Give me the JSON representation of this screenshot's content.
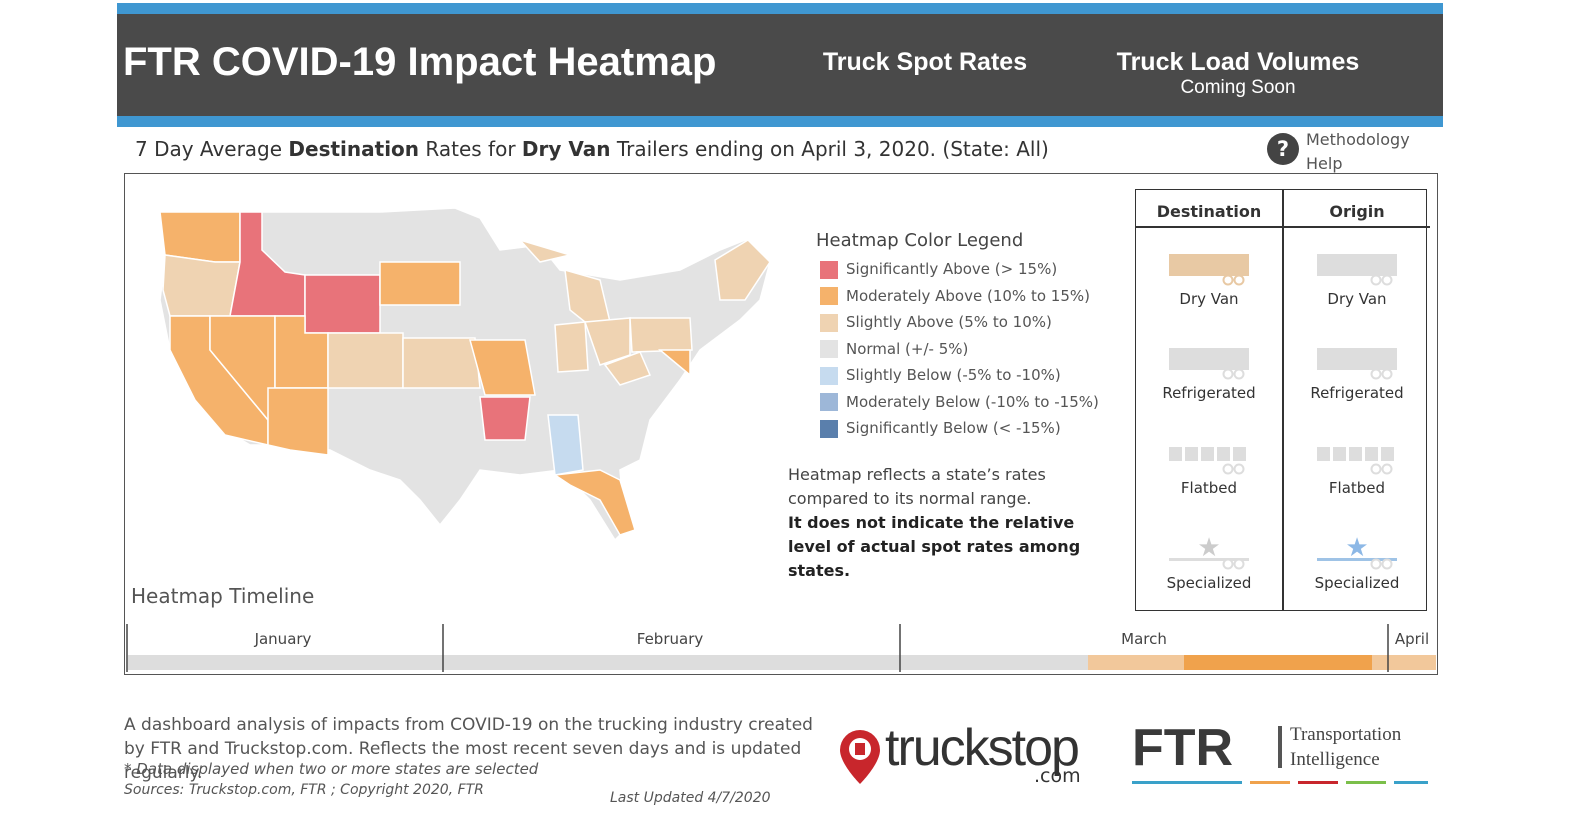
{
  "header": {
    "title": "FTR COVID-19 Impact Heatmap",
    "tabs": [
      {
        "label": "Truck Spot Rates"
      },
      {
        "label": "Truck Load Volumes",
        "sublabel": "Coming Soon"
      }
    ]
  },
  "subtitle": {
    "parts": [
      "7 Day Average ",
      "Destination",
      " Rates for ",
      "Dry Van",
      " Trailers ending on April 3, 2020. (State: All)"
    ]
  },
  "help": {
    "label": "Methodology Help"
  },
  "legend": {
    "title": "Heatmap Color Legend",
    "items": [
      {
        "label": "Significantly Above (> 15%)",
        "color": "#e8737a"
      },
      {
        "label": "Moderately Above (10% to 15%)",
        "color": "#f5b26b"
      },
      {
        "label": "Slightly Above (5% to 10%)",
        "color": "#efd3b2"
      },
      {
        "label": "Normal (+/- 5%)",
        "color": "#e3e3e3"
      },
      {
        "label": "Slightly Below (-5% to -10%)",
        "color": "#c6dbef"
      },
      {
        "label": "Moderately Below (-10% to -15%)",
        "color": "#9db7d8"
      },
      {
        "label": "Significantly Below (< -15%)",
        "color": "#5a7fac"
      }
    ]
  },
  "note": {
    "text": "Heatmap reflects a state’s rates compared to its normal range.",
    "bold": "It does not indicate the relative level of actual spot rates among states."
  },
  "selector": {
    "columns": [
      {
        "title": "Destination",
        "items": [
          "Dry Van",
          "Refrigerated",
          "Flatbed",
          "Specialized"
        ]
      },
      {
        "title": "Origin",
        "items": [
          "Dry Van",
          "Refrigerated",
          "Flatbed",
          "Specialized"
        ]
      }
    ]
  },
  "timeline": {
    "title": "Heatmap Timeline",
    "months": [
      "January",
      "February",
      "March",
      "April"
    ]
  },
  "footer": {
    "description": "A dashboard analysis of impacts from COVID-19 on the trucking industry created by FTR and Truckstop.com. Reflects the most recent seven days and is updated regularly.",
    "footnote": "* Data displayed when two or more states are selected",
    "sources": "Sources: Truckstop.com, FTR ; Copyright 2020, FTR",
    "updated": "Last Updated 4/7/2020"
  },
  "logos": {
    "truckstop": "truckstop",
    "truckstop_suffix": ".com",
    "ftr": "FTR",
    "ftr_tagline": "Transportation Intelligence"
  }
}
